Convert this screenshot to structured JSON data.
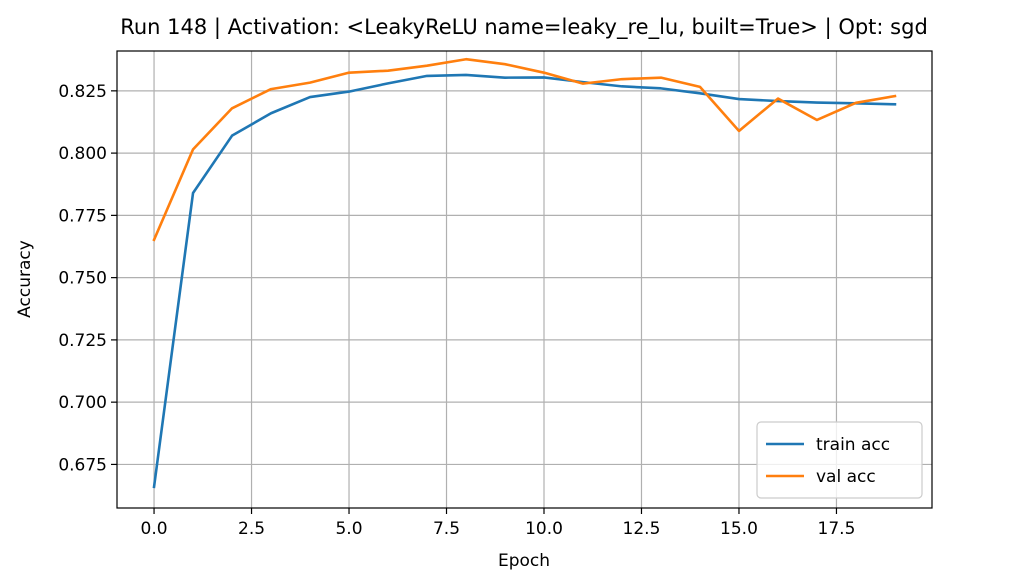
{
  "chart_data": {
    "type": "line",
    "title": "Run 148 | Activation: <LeakyReLU name=leaky_re_lu, built=True> | Opt: sgd",
    "xlabel": "Epoch",
    "ylabel": "Accuracy",
    "xlim": [
      -0.95,
      19.95
    ],
    "ylim": [
      0.6575,
      0.841
    ],
    "x_ticks": [
      0,
      2.5,
      5,
      7.5,
      10,
      12.5,
      15,
      17.5
    ],
    "x_tick_labels": [
      "0.0",
      "2.5",
      "5.0",
      "7.5",
      "10.0",
      "12.5",
      "15.0",
      "17.5"
    ],
    "y_ticks": [
      0.675,
      0.7,
      0.725,
      0.75,
      0.775,
      0.8,
      0.825
    ],
    "y_tick_labels": [
      "0.675",
      "0.700",
      "0.725",
      "0.750",
      "0.775",
      "0.800",
      "0.825"
    ],
    "grid": true,
    "legend_position": "lower-right",
    "x": [
      0,
      1,
      2,
      3,
      4,
      5,
      6,
      7,
      8,
      9,
      10,
      11,
      12,
      13,
      14,
      15,
      16,
      17,
      18,
      19
    ],
    "series": [
      {
        "name": "train acc",
        "color": "#1f77b4",
        "values": [
          0.666,
          0.784,
          0.807,
          0.816,
          0.8225,
          0.8247,
          0.828,
          0.831,
          0.8314,
          0.8303,
          0.8304,
          0.8285,
          0.8268,
          0.826,
          0.824,
          0.8217,
          0.8209,
          0.8203,
          0.82,
          0.8196
        ]
      },
      {
        "name": "val acc",
        "color": "#ff7f0e",
        "values": [
          0.7652,
          0.8015,
          0.818,
          0.8257,
          0.8283,
          0.8323,
          0.8331,
          0.8351,
          0.8377,
          0.8357,
          0.8323,
          0.8279,
          0.8297,
          0.8303,
          0.8266,
          0.8089,
          0.8219,
          0.8133,
          0.8202,
          0.8229
        ]
      }
    ]
  }
}
